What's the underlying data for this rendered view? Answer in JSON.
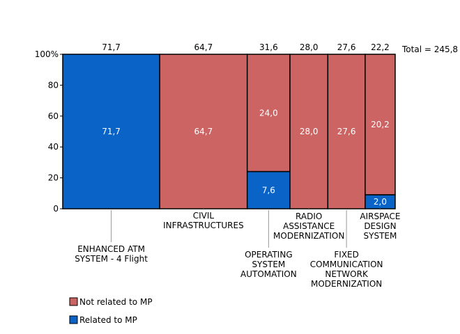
{
  "chart_data": {
    "type": "bar",
    "subtype": "marimekko",
    "total_label": "Total = 245,8",
    "y_ticks": [
      "0",
      "20",
      "40",
      "60",
      "80",
      "100%"
    ],
    "ylim": [
      0,
      100
    ],
    "categories": [
      {
        "name": "ENHANCED ATM SYSTEM - 4 Flight",
        "label_lines": [
          "ENHANCED ATM",
          "SYSTEM - 4 Flight"
        ],
        "total": "71,7",
        "related": "71,7",
        "not_related": ""
      },
      {
        "name": "CIVIL INFRASTRUCTURES",
        "label_lines": [
          "CIVIL",
          "INFRASTRUCTURES"
        ],
        "total": "64,7",
        "related": "",
        "not_related": "64,7"
      },
      {
        "name": "OPERATING SYSTEM AUTOMATION",
        "label_lines": [
          "OPERATING",
          "SYSTEM",
          "AUTOMATION"
        ],
        "total": "31,6",
        "related": "7,6",
        "not_related": "24,0"
      },
      {
        "name": "RADIO ASSISTANCE MODERNIZATION",
        "label_lines": [
          "RADIO",
          "ASSISTANCE",
          "MODERNIZATION"
        ],
        "total": "28,0",
        "related": "",
        "not_related": "28,0"
      },
      {
        "name": "FIXED COMMUNICATION NETWORK MODERNIZATION",
        "label_lines": [
          "FIXED",
          "COMMUNICATION",
          "NETWORK",
          "MODERNIZATION"
        ],
        "total": "27,6",
        "related": "",
        "not_related": "27,6"
      },
      {
        "name": "AIRSPACE DESIGN SYSTEM",
        "label_lines": [
          "AIRSPACE",
          "DESIGN",
          "SYSTEM"
        ],
        "total": "22,2",
        "related": "2,0",
        "not_related": "20,2"
      }
    ],
    "series": [
      {
        "name": "Not related to MP",
        "color": "#cd6464"
      },
      {
        "name": "Related to MP",
        "color": "#0a64c8"
      }
    ],
    "legend_position": "bottom-left"
  }
}
